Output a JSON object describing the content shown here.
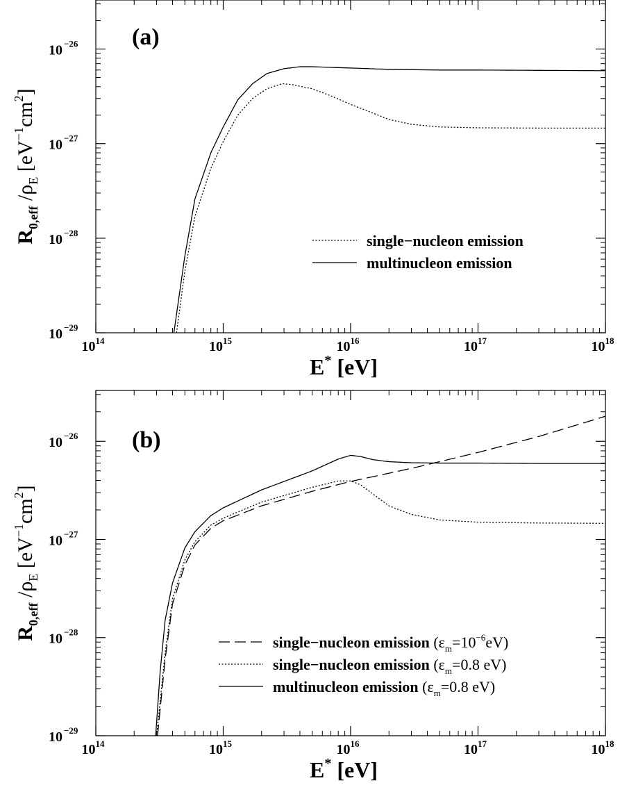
{
  "chart_data": [
    {
      "type": "line",
      "panel_label": "(a)",
      "xlabel": {
        "base": "E",
        "sup": "*",
        "rest": " [eV]"
      },
      "ylabel": {
        "main": "R",
        "sub1": "0,eff",
        "mid": " /ρ",
        "sub2": "E",
        "unit1": " [eV",
        "sup1": "−1",
        "unit2": "cm",
        "sup2": "2",
        "close": "]"
      },
      "x_scale": "log",
      "y_scale": "log",
      "xlim": [
        100000000000000.0,
        1e+18
      ],
      "ylim": [
        1e-29,
        3.3e-26
      ],
      "x_ticks": [
        {
          "value": 100000000000000.0,
          "base": "10",
          "exp": "14"
        },
        {
          "value": 1000000000000000.0,
          "base": "10",
          "exp": "15"
        },
        {
          "value": 1e+16,
          "base": "10",
          "exp": "16"
        },
        {
          "value": 1e+17,
          "base": "10",
          "exp": "17"
        },
        {
          "value": 1e+18,
          "base": "10",
          "exp": "18"
        }
      ],
      "y_ticks": [
        {
          "value": 1e-29,
          "base": "10",
          "exp": "−29"
        },
        {
          "value": 1e-28,
          "base": "10",
          "exp": "−28"
        },
        {
          "value": 1e-27,
          "base": "10",
          "exp": "−27"
        },
        {
          "value": 1e-26,
          "base": "10",
          "exp": "−26"
        }
      ],
      "legend_position": "center-right",
      "series": [
        {
          "name": "single−nucleon emission",
          "style": "dotted",
          "x": [
            430000000000000.0,
            500000000000000.0,
            600000000000000.0,
            800000000000000.0,
            1000000000000000.0,
            1300000000000000.0,
            1700000000000000.0,
            2200000000000000.0,
            2900000000000000.0,
            3500000000000000.0,
            5000000000000000.0,
            7000000000000000.0,
            1e+16,
            1.5e+16,
            2e+16,
            3e+16,
            5e+16,
            1e+17,
            3e+17,
            1e+18
          ],
          "y": [
            1e-29,
            4.5e-29,
            1.7e-28,
            5.5e-28,
            1.05e-27,
            2e-27,
            3e-27,
            3.8e-27,
            4.3e-27,
            4.2e-27,
            3.8e-27,
            3.2e-27,
            2.6e-27,
            2.1e-27,
            1.8e-27,
            1.6e-27,
            1.5e-27,
            1.47e-27,
            1.46e-27,
            1.46e-27
          ]
        },
        {
          "name": "multinucleon emission",
          "style": "solid",
          "x": [
            410000000000000.0,
            500000000000000.0,
            600000000000000.0,
            800000000000000.0,
            1000000000000000.0,
            1300000000000000.0,
            1700000000000000.0,
            2200000000000000.0,
            3000000000000000.0,
            4000000000000000.0,
            5000000000000000.0,
            7000000000000000.0,
            1e+16,
            2e+16,
            5e+16,
            1e+17,
            3e+17,
            1e+18
          ],
          "y": [
            1e-29,
            6.5e-29,
            2.6e-28,
            8e-28,
            1.5e-27,
            2.9e-27,
            4.3e-27,
            5.5e-27,
            6.2e-27,
            6.5e-27,
            6.5e-27,
            6.4e-27,
            6.3e-27,
            6.1e-27,
            6e-27,
            6e-27,
            5.95e-27,
            5.9e-27
          ]
        }
      ]
    },
    {
      "type": "line",
      "panel_label": "(b)",
      "xlabel": {
        "base": "E",
        "sup": "*",
        "rest": " [eV]"
      },
      "ylabel": {
        "main": "R",
        "sub1": "0,eff",
        "mid": " /ρ",
        "sub2": "E",
        "unit1": " [eV",
        "sup1": "−1",
        "unit2": "cm",
        "sup2": "2",
        "close": "]"
      },
      "x_scale": "log",
      "y_scale": "log",
      "xlim": [
        100000000000000.0,
        1e+18
      ],
      "ylim": [
        1e-29,
        3.3e-26
      ],
      "x_ticks": [
        {
          "value": 100000000000000.0,
          "base": "10",
          "exp": "14"
        },
        {
          "value": 1000000000000000.0,
          "base": "10",
          "exp": "15"
        },
        {
          "value": 1e+16,
          "base": "10",
          "exp": "16"
        },
        {
          "value": 1e+17,
          "base": "10",
          "exp": "17"
        },
        {
          "value": 1e+18,
          "base": "10",
          "exp": "18"
        }
      ],
      "y_ticks": [
        {
          "value": 1e-29,
          "base": "10",
          "exp": "−29"
        },
        {
          "value": 1e-28,
          "base": "10",
          "exp": "−28"
        },
        {
          "value": 1e-27,
          "base": "10",
          "exp": "−27"
        },
        {
          "value": 1e-26,
          "base": "10",
          "exp": "−26"
        }
      ],
      "legend_position": "bottom-right",
      "series": [
        {
          "name": "single−nucleon emission",
          "legend_eps": {
            "open": " (ε",
            "sub": "m",
            "value": "=10",
            "sup": "−6",
            "unit": "eV)"
          },
          "style": "dashed",
          "x": [
            305000000000000.0,
            350000000000000.0,
            400000000000000.0,
            500000000000000.0,
            600000000000000.0,
            800000000000000.0,
            1000000000000000.0,
            2000000000000000.0,
            5000000000000000.0,
            1e+16,
            3e+16,
            1e+17,
            3e+17,
            1e+18
          ],
          "y": [
            1e-29,
            6e-29,
            2.2e-28,
            5.5e-28,
            8.8e-28,
            1.3e-27,
            1.55e-27,
            2.2e-27,
            3.1e-27,
            3.9e-27,
            5.3e-27,
            7.7e-27,
            1.12e-26,
            1.8e-26
          ]
        },
        {
          "name": "single−nucleon emission",
          "legend_eps": {
            "open": " (ε",
            "sub": "m",
            "value": "=0.8 eV)",
            "sup": "",
            "unit": ""
          },
          "style": "dotted",
          "x": [
            300000000000000.0,
            350000000000000.0,
            400000000000000.0,
            500000000000000.0,
            600000000000000.0,
            800000000000000.0,
            1000000000000000.0,
            2000000000000000.0,
            5000000000000000.0,
            8000000000000000.0,
            1e+16,
            1.2e+16,
            1.5e+16,
            2e+16,
            3e+16,
            5e+16,
            1e+17,
            3e+17,
            1e+18
          ],
          "y": [
            1e-29,
            7e-29,
            2.5e-28,
            6.2e-28,
            9.5e-28,
            1.4e-27,
            1.65e-27,
            2.4e-27,
            3.4e-27,
            3.95e-27,
            3.95e-27,
            3.6e-27,
            2.9e-27,
            2.2e-27,
            1.8e-27,
            1.58e-27,
            1.5e-27,
            1.47e-27,
            1.46e-27
          ]
        },
        {
          "name": "multinucleon emission",
          "legend_eps": {
            "open": " (ε",
            "sub": "m",
            "value": "=0.8 eV)",
            "sup": "",
            "unit": ""
          },
          "style": "solid",
          "x": [
            295000000000000.0,
            320000000000000.0,
            350000000000000.0,
            400000000000000.0,
            500000000000000.0,
            600000000000000.0,
            800000000000000.0,
            1000000000000000.0,
            2000000000000000.0,
            5000000000000000.0,
            8000000000000000.0,
            1e+16,
            1.2e+16,
            1.5e+16,
            2e+16,
            3e+16,
            5e+16,
            1e+17,
            3e+17,
            1e+18
          ],
          "y": [
            1e-29,
            4.5e-29,
            1.5e-28,
            3.6e-28,
            8.2e-28,
            1.2e-27,
            1.75e-27,
            2.1e-27,
            3.2e-27,
            5e-27,
            6.6e-27,
            7.2e-27,
            7e-27,
            6.5e-27,
            6.2e-27,
            6.05e-27,
            6e-27,
            6e-27,
            5.95e-27,
            5.95e-27
          ]
        }
      ]
    }
  ]
}
